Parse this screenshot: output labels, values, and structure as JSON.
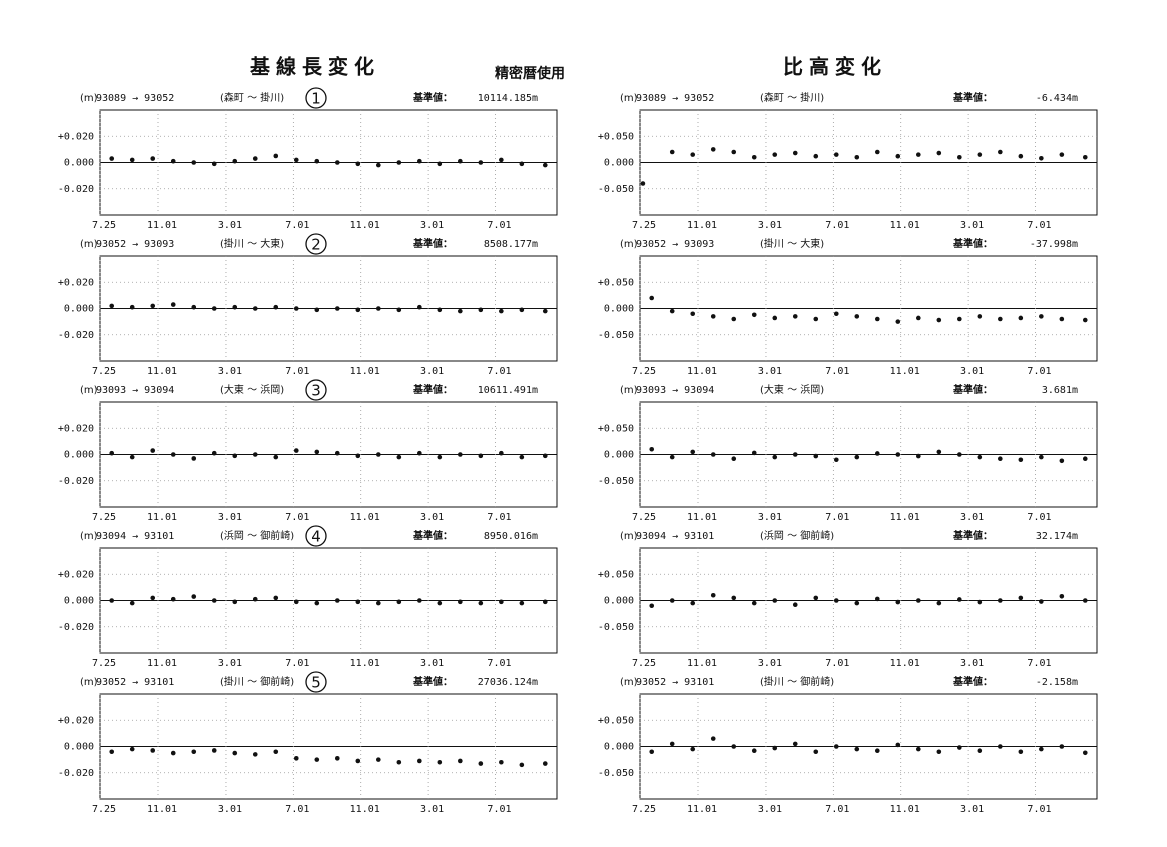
{
  "header": {
    "title_left": "基線長変化",
    "subtitle": "精密暦使用",
    "title_right": "比高変化"
  },
  "chart_data": [
    {
      "type": "scatter",
      "unit": "(m)",
      "route": "93089 → 93052",
      "places": "(森町 ～ 掛川)",
      "number": "1",
      "base_label": "基準値：",
      "base_value": "10114.185m",
      "xlim": [
        0,
        780
      ],
      "xticks": [
        {
          "value": 0,
          "label": "7.25"
        },
        {
          "value": 99,
          "label": "11.01"
        },
        {
          "value": 215,
          "label": "3.01"
        },
        {
          "value": 330,
          "label": "7.01"
        },
        {
          "value": 445,
          "label": "11.01"
        },
        {
          "value": 560,
          "label": "3.01"
        },
        {
          "value": 675,
          "label": "7.01"
        }
      ],
      "ylim": [
        -0.04,
        0.04
      ],
      "yticks": [
        {
          "value": 0.02,
          "label": "+0.020"
        },
        {
          "value": 0,
          "label": "0.000"
        },
        {
          "value": -0.02,
          "label": "-0.020"
        }
      ],
      "color": "#111111",
      "x": [
        20,
        55,
        90,
        125,
        160,
        195,
        230,
        265,
        300,
        335,
        370,
        405,
        440,
        475,
        510,
        545,
        580,
        615,
        650,
        685,
        720,
        760
      ],
      "values": [
        0.003,
        0.002,
        0.003,
        0.001,
        0.0,
        -0.001,
        0.001,
        0.003,
        0.005,
        0.002,
        0.001,
        0.0,
        -0.001,
        -0.002,
        0.0,
        0.001,
        -0.001,
        0.001,
        0.0,
        0.002,
        -0.001,
        -0.002
      ]
    },
    {
      "type": "scatter",
      "unit": "(m)",
      "route": "93052 → 93093",
      "places": "(掛川 ～ 大東)",
      "number": "2",
      "base_label": "基準値：",
      "base_value": "8508.177m",
      "xlim": [
        0,
        780
      ],
      "xticks": [
        {
          "value": 0,
          "label": "7.25"
        },
        {
          "value": 99,
          "label": "11.01"
        },
        {
          "value": 215,
          "label": "3.01"
        },
        {
          "value": 330,
          "label": "7.01"
        },
        {
          "value": 445,
          "label": "11.01"
        },
        {
          "value": 560,
          "label": "3.01"
        },
        {
          "value": 675,
          "label": "7.01"
        }
      ],
      "ylim": [
        -0.04,
        0.04
      ],
      "yticks": [
        {
          "value": 0.02,
          "label": "+0.020"
        },
        {
          "value": 0,
          "label": "0.000"
        },
        {
          "value": -0.02,
          "label": "-0.020"
        }
      ],
      "color": "#111111",
      "x": [
        20,
        55,
        90,
        125,
        160,
        195,
        230,
        265,
        300,
        335,
        370,
        405,
        440,
        475,
        510,
        545,
        580,
        615,
        650,
        685,
        720,
        760
      ],
      "values": [
        0.002,
        0.001,
        0.002,
        0.003,
        0.001,
        0.0,
        0.001,
        0.0,
        0.001,
        0.0,
        -0.001,
        0.0,
        -0.001,
        0.0,
        -0.001,
        0.001,
        -0.001,
        -0.002,
        -0.001,
        -0.002,
        -0.001,
        -0.002
      ]
    },
    {
      "type": "scatter",
      "unit": "(m)",
      "route": "93093 → 93094",
      "places": "(大東 ～ 浜岡)",
      "number": "3",
      "base_label": "基準値：",
      "base_value": "10611.491m",
      "xlim": [
        0,
        780
      ],
      "xticks": [
        {
          "value": 0,
          "label": "7.25"
        },
        {
          "value": 99,
          "label": "11.01"
        },
        {
          "value": 215,
          "label": "3.01"
        },
        {
          "value": 330,
          "label": "7.01"
        },
        {
          "value": 445,
          "label": "11.01"
        },
        {
          "value": 560,
          "label": "3.01"
        },
        {
          "value": 675,
          "label": "7.01"
        }
      ],
      "ylim": [
        -0.04,
        0.04
      ],
      "yticks": [
        {
          "value": 0.02,
          "label": "+0.020"
        },
        {
          "value": 0,
          "label": "0.000"
        },
        {
          "value": -0.02,
          "label": "-0.020"
        }
      ],
      "color": "#111111",
      "x": [
        20,
        55,
        90,
        125,
        160,
        195,
        230,
        265,
        300,
        335,
        370,
        405,
        440,
        475,
        510,
        545,
        580,
        615,
        650,
        685,
        720,
        760
      ],
      "values": [
        0.001,
        -0.002,
        0.003,
        0.0,
        -0.003,
        0.001,
        -0.001,
        0.0,
        -0.002,
        0.003,
        0.002,
        0.001,
        -0.001,
        0.0,
        -0.002,
        0.001,
        -0.002,
        0.0,
        -0.001,
        0.001,
        -0.002,
        -0.001
      ]
    },
    {
      "type": "scatter",
      "unit": "(m)",
      "route": "93094 → 93101",
      "places": "(浜岡 ～ 御前崎)",
      "number": "4",
      "base_label": "基準値：",
      "base_value": "8950.016m",
      "xlim": [
        0,
        780
      ],
      "xticks": [
        {
          "value": 0,
          "label": "7.25"
        },
        {
          "value": 99,
          "label": "11.01"
        },
        {
          "value": 215,
          "label": "3.01"
        },
        {
          "value": 330,
          "label": "7.01"
        },
        {
          "value": 445,
          "label": "11.01"
        },
        {
          "value": 560,
          "label": "3.01"
        },
        {
          "value": 675,
          "label": "7.01"
        }
      ],
      "ylim": [
        -0.04,
        0.04
      ],
      "yticks": [
        {
          "value": 0.02,
          "label": "+0.020"
        },
        {
          "value": 0,
          "label": "0.000"
        },
        {
          "value": -0.02,
          "label": "-0.020"
        }
      ],
      "color": "#111111",
      "x": [
        20,
        55,
        90,
        125,
        160,
        195,
        230,
        265,
        300,
        335,
        370,
        405,
        440,
        475,
        510,
        545,
        580,
        615,
        650,
        685,
        720,
        760
      ],
      "values": [
        0.0,
        -0.002,
        0.002,
        0.001,
        0.003,
        0.0,
        -0.001,
        0.001,
        0.002,
        -0.001,
        -0.002,
        0.0,
        -0.001,
        -0.002,
        -0.001,
        0.0,
        -0.002,
        -0.001,
        -0.002,
        -0.001,
        -0.002,
        -0.001
      ]
    },
    {
      "type": "scatter",
      "unit": "(m)",
      "route": "93052 → 93101",
      "places": "(掛川 ～ 御前崎)",
      "number": "5",
      "base_label": "基準値：",
      "base_value": "27036.124m",
      "xlim": [
        0,
        780
      ],
      "xticks": [
        {
          "value": 0,
          "label": "7.25"
        },
        {
          "value": 99,
          "label": "11.01"
        },
        {
          "value": 215,
          "label": "3.01"
        },
        {
          "value": 330,
          "label": "7.01"
        },
        {
          "value": 445,
          "label": "11.01"
        },
        {
          "value": 560,
          "label": "3.01"
        },
        {
          "value": 675,
          "label": "7.01"
        }
      ],
      "ylim": [
        -0.04,
        0.04
      ],
      "yticks": [
        {
          "value": 0.02,
          "label": "+0.020"
        },
        {
          "value": 0,
          "label": "0.000"
        },
        {
          "value": -0.02,
          "label": "-0.020"
        }
      ],
      "color": "#111111",
      "x": [
        20,
        55,
        90,
        125,
        160,
        195,
        230,
        265,
        300,
        335,
        370,
        405,
        440,
        475,
        510,
        545,
        580,
        615,
        650,
        685,
        720,
        760
      ],
      "values": [
        -0.004,
        -0.002,
        -0.003,
        -0.005,
        -0.004,
        -0.003,
        -0.005,
        -0.006,
        -0.004,
        -0.009,
        -0.01,
        -0.009,
        -0.011,
        -0.01,
        -0.012,
        -0.011,
        -0.012,
        -0.011,
        -0.013,
        -0.012,
        -0.014,
        -0.013
      ]
    },
    {
      "type": "scatter",
      "unit": "(m)",
      "route": "93089 → 93052",
      "places": "(森町 ～ 掛川)",
      "base_label": "基準値：",
      "base_value": "-6.434m",
      "xlim": [
        0,
        780
      ],
      "xticks": [
        {
          "value": 0,
          "label": "7.25"
        },
        {
          "value": 99,
          "label": "11.01"
        },
        {
          "value": 215,
          "label": "3.01"
        },
        {
          "value": 330,
          "label": "7.01"
        },
        {
          "value": 445,
          "label": "11.01"
        },
        {
          "value": 560,
          "label": "3.01"
        },
        {
          "value": 675,
          "label": "7.01"
        }
      ],
      "ylim": [
        -0.1,
        0.1
      ],
      "yticks": [
        {
          "value": 0.05,
          "label": "+0.050"
        },
        {
          "value": 0,
          "label": "0.000"
        },
        {
          "value": -0.05,
          "label": "-0.050"
        }
      ],
      "color": "#111111",
      "x": [
        5,
        55,
        90,
        125,
        160,
        195,
        230,
        265,
        300,
        335,
        370,
        405,
        440,
        475,
        510,
        545,
        580,
        615,
        650,
        685,
        720,
        760
      ],
      "values": [
        -0.04,
        0.02,
        0.015,
        0.025,
        0.02,
        0.01,
        0.015,
        0.018,
        0.012,
        0.015,
        0.01,
        0.02,
        0.012,
        0.015,
        0.018,
        0.01,
        0.015,
        0.02,
        0.012,
        0.008,
        0.015,
        0.01
      ]
    },
    {
      "type": "scatter",
      "unit": "(m)",
      "route": "93052 → 93093",
      "places": "(掛川 ～ 大東)",
      "base_label": "基準値：",
      "base_value": "-37.998m",
      "xlim": [
        0,
        780
      ],
      "xticks": [
        {
          "value": 0,
          "label": "7.25"
        },
        {
          "value": 99,
          "label": "11.01"
        },
        {
          "value": 215,
          "label": "3.01"
        },
        {
          "value": 330,
          "label": "7.01"
        },
        {
          "value": 445,
          "label": "11.01"
        },
        {
          "value": 560,
          "label": "3.01"
        },
        {
          "value": 675,
          "label": "7.01"
        }
      ],
      "ylim": [
        -0.1,
        0.1
      ],
      "yticks": [
        {
          "value": 0.05,
          "label": "+0.050"
        },
        {
          "value": 0,
          "label": "0.000"
        },
        {
          "value": -0.05,
          "label": "-0.050"
        }
      ],
      "color": "#111111",
      "x": [
        20,
        55,
        90,
        125,
        160,
        195,
        230,
        265,
        300,
        335,
        370,
        405,
        440,
        475,
        510,
        545,
        580,
        615,
        650,
        685,
        720,
        760
      ],
      "values": [
        0.02,
        -0.005,
        -0.01,
        -0.015,
        -0.02,
        -0.012,
        -0.018,
        -0.015,
        -0.02,
        -0.01,
        -0.015,
        -0.02,
        -0.025,
        -0.018,
        -0.022,
        -0.02,
        -0.015,
        -0.02,
        -0.018,
        -0.015,
        -0.02,
        -0.022
      ]
    },
    {
      "type": "scatter",
      "unit": "(m)",
      "route": "93093 → 93094",
      "places": "(大東 ～ 浜岡)",
      "base_label": "基準値：",
      "base_value": "3.681m",
      "xlim": [
        0,
        780
      ],
      "xticks": [
        {
          "value": 0,
          "label": "7.25"
        },
        {
          "value": 99,
          "label": "11.01"
        },
        {
          "value": 215,
          "label": "3.01"
        },
        {
          "value": 330,
          "label": "7.01"
        },
        {
          "value": 445,
          "label": "11.01"
        },
        {
          "value": 560,
          "label": "3.01"
        },
        {
          "value": 675,
          "label": "7.01"
        }
      ],
      "ylim": [
        -0.1,
        0.1
      ],
      "yticks": [
        {
          "value": 0.05,
          "label": "+0.050"
        },
        {
          "value": 0,
          "label": "0.000"
        },
        {
          "value": -0.05,
          "label": "-0.050"
        }
      ],
      "color": "#111111",
      "x": [
        20,
        55,
        90,
        125,
        160,
        195,
        230,
        265,
        300,
        335,
        370,
        405,
        440,
        475,
        510,
        545,
        580,
        615,
        650,
        685,
        720,
        760
      ],
      "values": [
        0.01,
        -0.005,
        0.005,
        0.0,
        -0.008,
        0.003,
        -0.005,
        0.0,
        -0.003,
        -0.01,
        -0.005,
        0.002,
        0.0,
        -0.003,
        0.005,
        0.0,
        -0.005,
        -0.008,
        -0.01,
        -0.005,
        -0.012,
        -0.008
      ]
    },
    {
      "type": "scatter",
      "unit": "(m)",
      "route": "93094 → 93101",
      "places": "(浜岡 ～ 御前崎)",
      "base_label": "基準値：",
      "base_value": "32.174m",
      "xlim": [
        0,
        780
      ],
      "xticks": [
        {
          "value": 0,
          "label": "7.25"
        },
        {
          "value": 99,
          "label": "11.01"
        },
        {
          "value": 215,
          "label": "3.01"
        },
        {
          "value": 330,
          "label": "7.01"
        },
        {
          "value": 445,
          "label": "11.01"
        },
        {
          "value": 560,
          "label": "3.01"
        },
        {
          "value": 675,
          "label": "7.01"
        }
      ],
      "ylim": [
        -0.1,
        0.1
      ],
      "yticks": [
        {
          "value": 0.05,
          "label": "+0.050"
        },
        {
          "value": 0,
          "label": "0.000"
        },
        {
          "value": -0.05,
          "label": "-0.050"
        }
      ],
      "color": "#111111",
      "x": [
        20,
        55,
        90,
        125,
        160,
        195,
        230,
        265,
        300,
        335,
        370,
        405,
        440,
        475,
        510,
        545,
        580,
        615,
        650,
        685,
        720,
        760
      ],
      "values": [
        -0.01,
        0.0,
        -0.005,
        0.01,
        0.005,
        -0.005,
        0.0,
        -0.008,
        0.005,
        0.0,
        -0.005,
        0.003,
        -0.003,
        0.0,
        -0.005,
        0.002,
        -0.003,
        0.0,
        0.005,
        -0.002,
        0.008,
        0.0
      ]
    },
    {
      "type": "scatter",
      "unit": "(m)",
      "route": "93052 → 93101",
      "places": "(掛川 ～ 御前崎)",
      "base_label": "基準値：",
      "base_value": "-2.158m",
      "xlim": [
        0,
        780
      ],
      "xticks": [
        {
          "value": 0,
          "label": "7.25"
        },
        {
          "value": 99,
          "label": "11.01"
        },
        {
          "value": 215,
          "label": "3.01"
        },
        {
          "value": 330,
          "label": "7.01"
        },
        {
          "value": 445,
          "label": "11.01"
        },
        {
          "value": 560,
          "label": "3.01"
        },
        {
          "value": 675,
          "label": "7.01"
        }
      ],
      "ylim": [
        -0.1,
        0.1
      ],
      "yticks": [
        {
          "value": 0.05,
          "label": "+0.050"
        },
        {
          "value": 0,
          "label": "0.000"
        },
        {
          "value": -0.05,
          "label": "-0.050"
        }
      ],
      "color": "#111111",
      "x": [
        20,
        55,
        90,
        125,
        160,
        195,
        230,
        265,
        300,
        335,
        370,
        405,
        440,
        475,
        510,
        545,
        580,
        615,
        650,
        685,
        720,
        760
      ],
      "values": [
        -0.01,
        0.005,
        -0.005,
        0.015,
        0.0,
        -0.008,
        -0.003,
        0.005,
        -0.01,
        0.0,
        -0.005,
        -0.008,
        0.003,
        -0.005,
        -0.01,
        -0.002,
        -0.008,
        0.0,
        -0.01,
        -0.005,
        0.0,
        -0.012
      ]
    }
  ]
}
